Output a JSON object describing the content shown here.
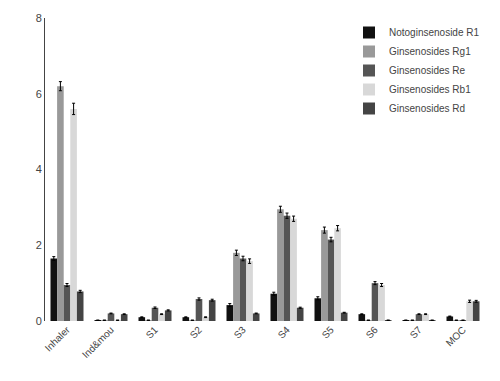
{
  "chart_data": {
    "type": "bar",
    "categories": [
      "Inhaler",
      "Ind&mou",
      "S1",
      "S2",
      "S3",
      "S4",
      "S5",
      "S6",
      "S7",
      "MOC"
    ],
    "series": [
      {
        "name": "Notoginsenoside R1",
        "color": "#111111",
        "values": [
          1.65,
          0.02,
          0.1,
          0.1,
          0.42,
          0.72,
          0.6,
          0.18,
          0.02,
          0.12
        ],
        "errors": [
          0.05,
          0.005,
          0.01,
          0.01,
          0.04,
          0.04,
          0.04,
          0.01,
          0.005,
          0.01
        ]
      },
      {
        "name": "Ginsenosides Rg1",
        "color": "#999999",
        "values": [
          6.2,
          0.02,
          0.02,
          0.02,
          1.8,
          2.95,
          2.4,
          0.02,
          0.02,
          0.02
        ],
        "errors": [
          0.12,
          0.005,
          0.005,
          0.005,
          0.07,
          0.08,
          0.08,
          0.005,
          0.005,
          0.005
        ]
      },
      {
        "name": "Ginsenosides Re",
        "color": "#555555",
        "values": [
          0.95,
          0.2,
          0.35,
          0.58,
          1.65,
          2.78,
          2.15,
          1.0,
          0.18,
          0.02
        ],
        "errors": [
          0.04,
          0.01,
          0.02,
          0.03,
          0.06,
          0.07,
          0.06,
          0.04,
          0.01,
          0.005
        ]
      },
      {
        "name": "Ginsenosides Rb1",
        "color": "#d8d8d8",
        "values": [
          5.6,
          0.02,
          0.18,
          0.1,
          1.58,
          2.7,
          2.45,
          0.95,
          0.18,
          0.52
        ],
        "errors": [
          0.15,
          0.005,
          0.01,
          0.01,
          0.06,
          0.07,
          0.07,
          0.04,
          0.01,
          0.03
        ]
      },
      {
        "name": "Ginsenosides Rd",
        "color": "#444444",
        "values": [
          0.78,
          0.18,
          0.28,
          0.55,
          0.2,
          0.35,
          0.22,
          0.02,
          0.02,
          0.52
        ],
        "errors": [
          0.03,
          0.01,
          0.015,
          0.025,
          0.01,
          0.015,
          0.01,
          0.005,
          0.005,
          0.025
        ]
      }
    ],
    "ylim": [
      0,
      8
    ],
    "yticks": [
      0,
      2,
      4,
      6,
      8
    ],
    "legend": "upper right",
    "grid": false
  }
}
